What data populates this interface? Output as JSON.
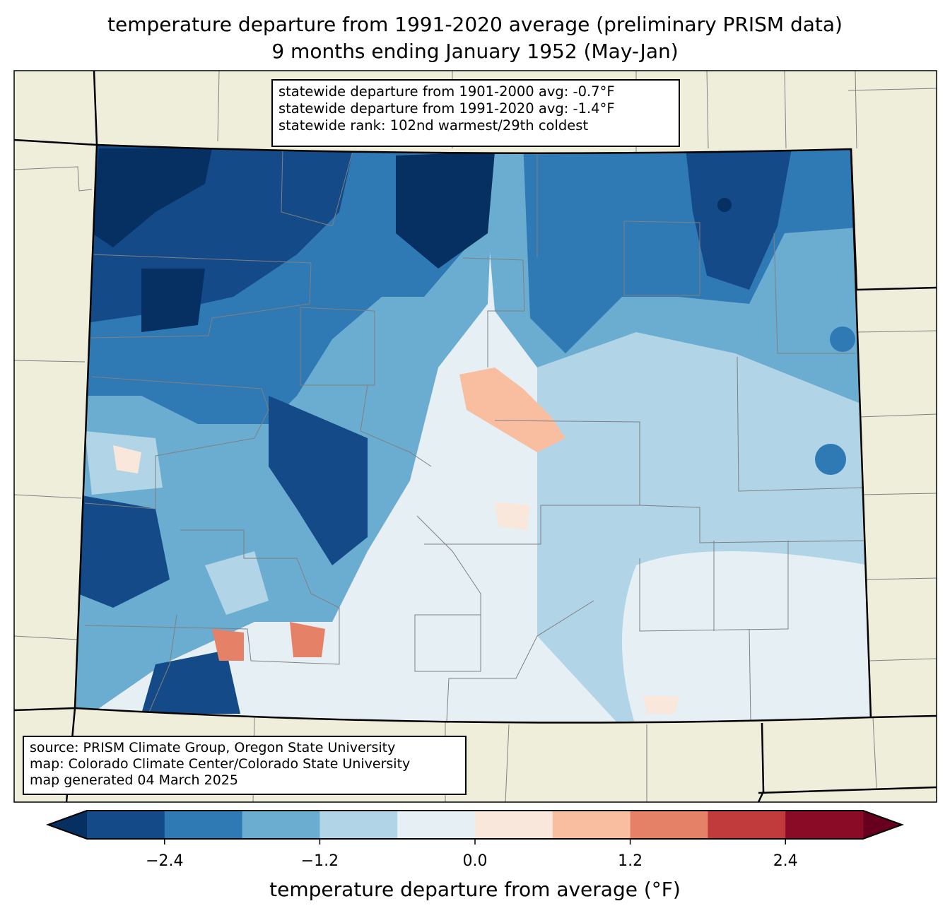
{
  "title": {
    "line1": "temperature departure from 1991-2020 average (preliminary PRISM data)",
    "line2": "9 months ending January 1952 (May-Jan)"
  },
  "stats": {
    "line1": "statewide departure from 1901-2000 avg: -0.7°F",
    "line2": "statewide departure from 1991-2020 avg: -1.4°F",
    "line3": "statewide rank: 102nd warmest/29th coldest"
  },
  "source": {
    "line1": "source: PRISM Climate Group, Oregon State University",
    "line2": "map: Colorado Climate Center/Colorado State University",
    "line3": "map generated 04 March 2025"
  },
  "colorbar": {
    "label": "temperature departure from average (°F)",
    "ticks": [
      "−2.4",
      "−1.2",
      "0.0",
      "1.2",
      "2.4"
    ],
    "tick_values": [
      -2.4,
      -1.2,
      0.0,
      1.2,
      2.4
    ],
    "bounds": [
      -3.0,
      -2.4,
      -1.8,
      -1.2,
      -0.6,
      0.0,
      0.6,
      1.2,
      1.8,
      2.4,
      3.0
    ],
    "colors": [
      "#144a87",
      "#2f79b5",
      "#6bacd1",
      "#b1d5e7",
      "#e6eff4",
      "#fae7dc",
      "#f9bda0",
      "#e48166",
      "#c13b3c",
      "#8a0b25"
    ],
    "under_color": "#053061",
    "over_color": "#67001f"
  },
  "map_colors": {
    "land": "#efeedb",
    "county_line": "#808080"
  }
}
